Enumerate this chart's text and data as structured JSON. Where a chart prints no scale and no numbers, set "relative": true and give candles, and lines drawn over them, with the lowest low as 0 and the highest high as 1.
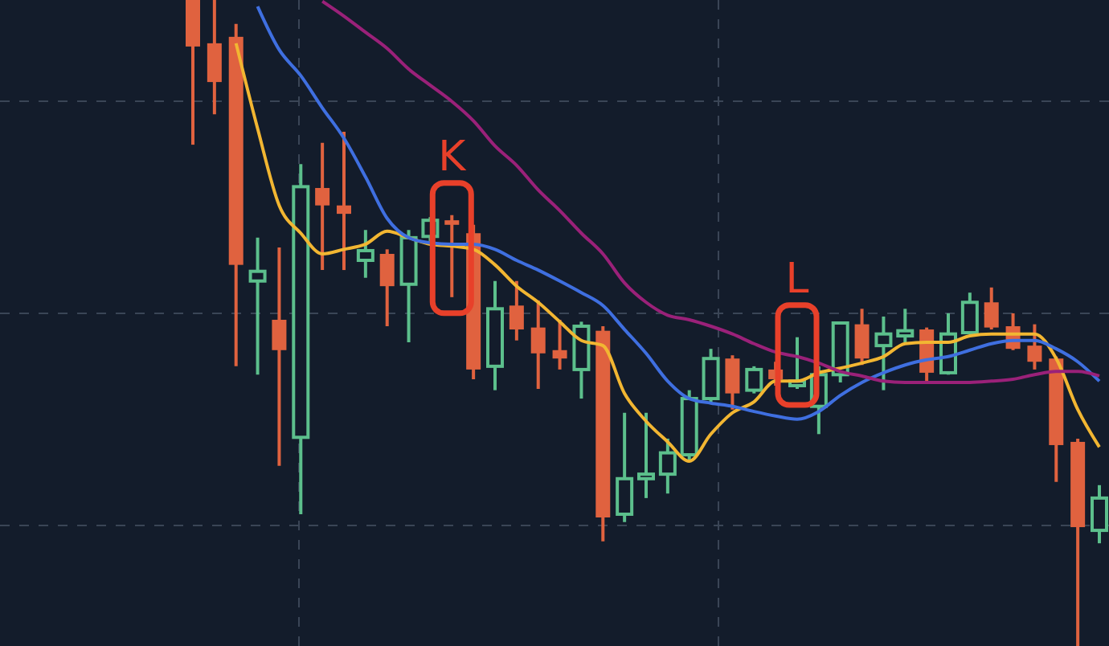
{
  "chart_data": {
    "type": "candlestick",
    "relative": true,
    "grid": true,
    "categories": [
      null,
      null,
      null,
      null,
      null,
      null,
      null,
      null,
      null,
      null,
      null,
      null,
      null,
      null,
      null,
      null,
      null,
      null,
      null,
      null,
      null,
      null,
      null,
      null,
      null,
      null,
      null,
      null,
      null,
      null,
      null,
      null,
      null,
      null,
      null,
      null,
      null,
      null,
      null,
      null,
      null,
      null,
      null
    ],
    "ohlc": [
      [
        1.0,
        1.0,
        0.776,
        0.928
      ],
      [
        0.933,
        1.0,
        0.823,
        0.873
      ],
      [
        0.943,
        0.963,
        0.433,
        0.59
      ],
      [
        0.565,
        0.632,
        0.42,
        0.58
      ],
      [
        0.505,
        0.617,
        0.279,
        0.458
      ],
      [
        0.323,
        0.746,
        0.204,
        0.711
      ],
      [
        0.709,
        0.779,
        0.582,
        0.682
      ],
      [
        0.682,
        0.796,
        0.582,
        0.669
      ],
      [
        0.597,
        0.644,
        0.57,
        0.612
      ],
      [
        0.607,
        0.614,
        0.495,
        0.557
      ],
      [
        0.56,
        0.644,
        0.47,
        0.632
      ],
      [
        0.634,
        0.664,
        0.627,
        0.659
      ],
      [
        0.659,
        0.667,
        0.54,
        0.652
      ],
      [
        0.639,
        0.652,
        0.413,
        0.428
      ],
      [
        0.433,
        0.565,
        0.396,
        0.522
      ],
      [
        0.527,
        0.565,
        0.473,
        0.49
      ],
      [
        0.493,
        0.535,
        0.398,
        0.453
      ],
      [
        0.458,
        0.505,
        0.428,
        0.445
      ],
      [
        0.428,
        0.502,
        0.383,
        0.495
      ],
      [
        0.488,
        0.495,
        0.162,
        0.199
      ],
      [
        0.204,
        0.361,
        0.192,
        0.259
      ],
      [
        0.259,
        0.361,
        0.229,
        0.266
      ],
      [
        0.266,
        0.321,
        0.236,
        0.299
      ],
      [
        0.296,
        0.396,
        0.286,
        0.383
      ],
      [
        0.383,
        0.46,
        0.378,
        0.445
      ],
      [
        0.445,
        0.45,
        0.366,
        0.391
      ],
      [
        0.396,
        0.433,
        0.391,
        0.428
      ],
      [
        0.428,
        0.44,
        0.403,
        0.413
      ],
      [
        0.403,
        0.478,
        0.398,
        0.41
      ],
      [
        0.371,
        0.433,
        0.328,
        0.42
      ],
      [
        0.42,
        0.502,
        0.408,
        0.5
      ],
      [
        0.498,
        0.522,
        0.435,
        0.445
      ],
      [
        0.465,
        0.51,
        0.396,
        0.483
      ],
      [
        0.48,
        0.522,
        0.47,
        0.488
      ],
      [
        0.49,
        0.493,
        0.41,
        0.423
      ],
      [
        0.423,
        0.515,
        0.42,
        0.483
      ],
      [
        0.485,
        0.547,
        0.483,
        0.532
      ],
      [
        0.532,
        0.555,
        0.49,
        0.493
      ],
      [
        0.495,
        0.515,
        0.458,
        0.46
      ],
      [
        0.465,
        0.498,
        0.428,
        0.44
      ],
      [
        0.445,
        0.448,
        0.254,
        0.311
      ],
      [
        0.316,
        0.321,
        0.0,
        0.184
      ],
      [
        0.179,
        0.249,
        0.159,
        0.229
      ]
    ],
    "series": [
      {
        "type": "line",
        "color": "#f2b632",
        "values": [
          null,
          null,
          0.933,
          0.801,
          0.682,
          0.639,
          0.607,
          0.614,
          0.622,
          0.642,
          0.632,
          0.622,
          0.619,
          0.614,
          0.59,
          0.557,
          0.532,
          0.502,
          0.473,
          0.465,
          0.391,
          0.348,
          0.316,
          0.286,
          0.328,
          0.361,
          0.378,
          0.41,
          0.41,
          0.423,
          0.43,
          0.438,
          0.448,
          0.468,
          0.47,
          0.47,
          0.48,
          0.483,
          0.483,
          0.483,
          0.445,
          0.366,
          0.308
        ]
      },
      {
        "type": "line",
        "color": "#3f6fe0",
        "values": [
          null,
          null,
          null,
          0.99,
          0.923,
          0.883,
          0.833,
          0.786,
          0.726,
          0.662,
          0.632,
          0.624,
          0.622,
          0.622,
          0.614,
          0.597,
          0.582,
          0.565,
          0.547,
          0.527,
          0.49,
          0.453,
          0.41,
          0.383,
          0.376,
          0.371,
          0.363,
          0.356,
          0.351,
          0.363,
          0.388,
          0.408,
          0.423,
          0.435,
          0.443,
          0.448,
          0.458,
          0.468,
          0.473,
          0.473,
          0.46,
          0.44,
          0.41
        ]
      },
      {
        "type": "line",
        "color": "#9a2179",
        "values": [
          null,
          null,
          null,
          null,
          null,
          null,
          0.998,
          0.975,
          0.95,
          0.925,
          0.893,
          0.868,
          0.843,
          0.813,
          0.774,
          0.744,
          0.706,
          0.674,
          0.639,
          0.607,
          0.562,
          0.532,
          0.512,
          0.505,
          0.495,
          0.483,
          0.468,
          0.455,
          0.448,
          0.438,
          0.425,
          0.418,
          0.41,
          0.408,
          0.408,
          0.408,
          0.408,
          0.41,
          0.413,
          0.42,
          0.425,
          0.425,
          0.418
        ]
      }
    ],
    "annotations": [
      {
        "text": "K",
        "y": 0.667
      },
      {
        "text": "L",
        "y": 0.478
      }
    ]
  }
}
